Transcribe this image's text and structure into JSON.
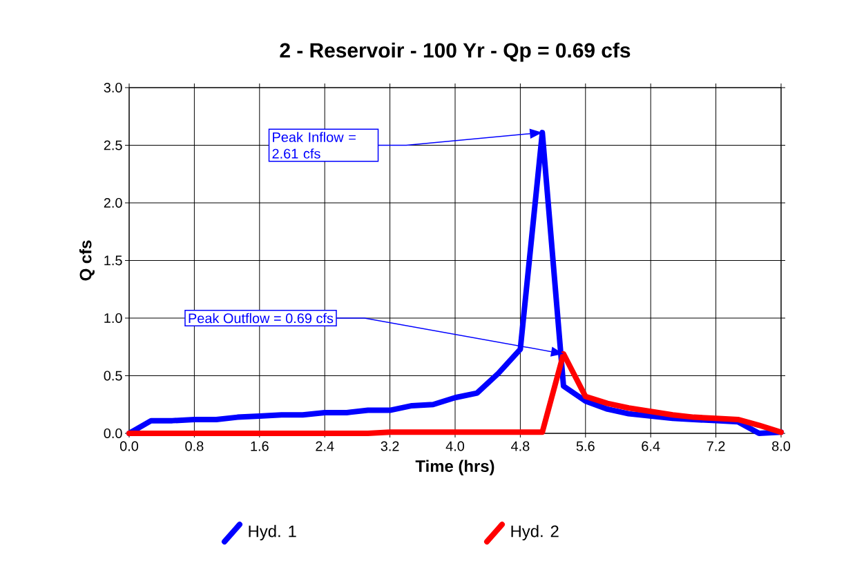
{
  "chart_data": {
    "type": "line",
    "title": "2 - Reservoir - 100 Yr - Qp = 0.69 cfs",
    "xlabel": "Time (hrs)",
    "ylabel": "Q cfs",
    "x": [
      0,
      0.27,
      0.53,
      0.8,
      1.07,
      1.33,
      1.6,
      1.87,
      2.13,
      2.4,
      2.67,
      2.93,
      3.2,
      3.47,
      3.73,
      4.0,
      4.27,
      4.53,
      4.8,
      5.07,
      5.33,
      5.6,
      5.87,
      6.13,
      6.4,
      6.67,
      6.93,
      7.2,
      7.47,
      7.73,
      8.0
    ],
    "series": [
      {
        "name": "Hyd. 1",
        "color": "#0000ff",
        "values": [
          0,
          0.11,
          0.11,
          0.12,
          0.12,
          0.14,
          0.15,
          0.16,
          0.16,
          0.18,
          0.18,
          0.2,
          0.2,
          0.24,
          0.25,
          0.31,
          0.35,
          0.52,
          0.73,
          2.61,
          0.41,
          0.28,
          0.21,
          0.17,
          0.15,
          0.13,
          0.12,
          0.11,
          0.1,
          0,
          0.01
        ]
      },
      {
        "name": "Hyd. 2",
        "color": "#ff0000",
        "values": [
          0,
          0,
          0,
          0,
          0,
          0,
          0,
          0,
          0,
          0,
          0,
          0,
          0.01,
          0.01,
          0.01,
          0.01,
          0.01,
          0.01,
          0.01,
          0.01,
          0.69,
          0.32,
          0.26,
          0.22,
          0.19,
          0.16,
          0.14,
          0.13,
          0.12,
          0.07,
          0.01
        ]
      }
    ],
    "xlim": [
      0,
      8
    ],
    "ylim": [
      0,
      3
    ],
    "xticks": [
      {
        "value": 0,
        "label": "0.0"
      },
      0.8,
      1.6,
      2.4,
      3.2,
      {
        "value": 4,
        "label": "4.0"
      },
      4.8,
      5.6,
      6.4,
      7.2,
      {
        "value": 8,
        "label": "8.0"
      }
    ],
    "yticks": [
      {
        "value": 0,
        "label": "0.0"
      },
      0.5,
      {
        "value": 1,
        "label": "1.0"
      },
      1.5,
      {
        "value": 2,
        "label": "2.0"
      },
      2.5,
      {
        "value": 3,
        "label": "3.0"
      }
    ],
    "grid": true,
    "legend": "bottom",
    "marker": "none",
    "line_style": "solid",
    "annotations": [
      "Peak Inflow = 2.61 cfs",
      "Peak Outflow = 0.69 cfs"
    ]
  }
}
